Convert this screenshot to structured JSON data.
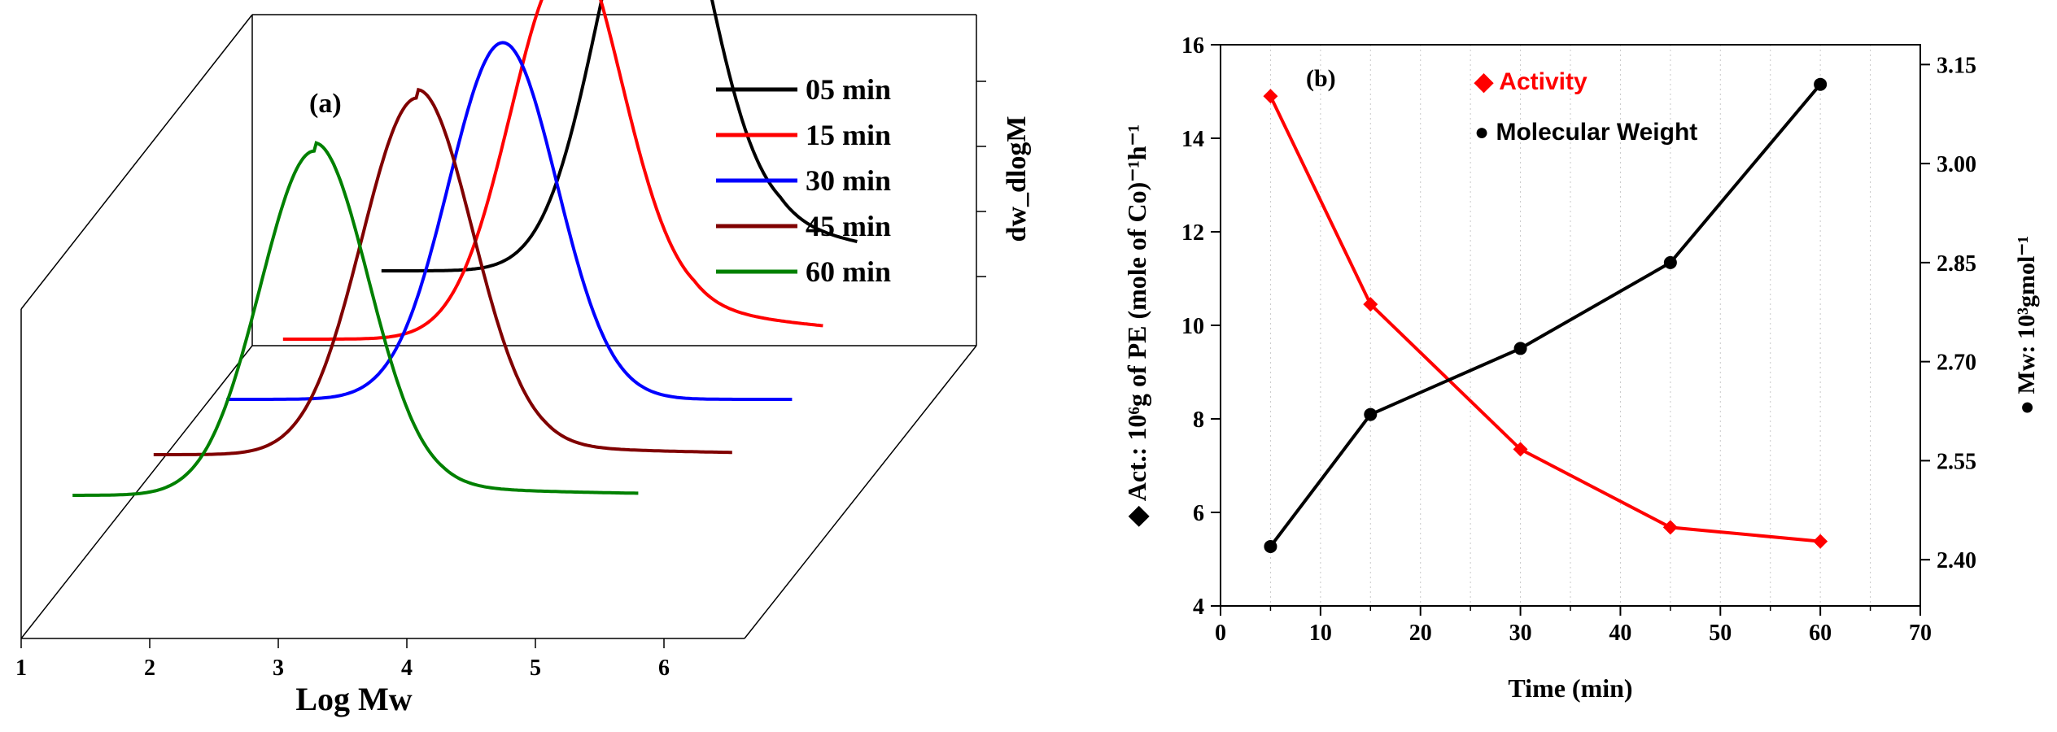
{
  "chart_data": [
    {
      "type": "line",
      "panel_label": "(a)",
      "style": "3d-waterfall",
      "xlabel": "Log Mw",
      "ylabel": "dw_dlogM",
      "x_ticks": [
        "1",
        "2",
        "3",
        "4",
        "5",
        "6"
      ],
      "xlim": [
        1,
        6.6
      ],
      "series": [
        {
          "name": "05 min",
          "color": "#000000",
          "x_range": [
            2.6,
            6.3
          ],
          "peak_x": 4.7,
          "peak_height": 1.0,
          "width": 0.42,
          "baseline": 0.0,
          "tail": 0.12
        },
        {
          "name": "15 min",
          "color": "#ff0000",
          "x_range": [
            2.1,
            6.3
          ],
          "peak_x": 4.3,
          "peak_height": 0.9,
          "width": 0.43,
          "baseline": 0.0,
          "tail": 0.08
        },
        {
          "name": "30 min",
          "color": "#0000ff",
          "x_range": [
            1.9,
            6.3
          ],
          "peak_x": 4.05,
          "peak_height": 0.86,
          "width": 0.42,
          "baseline": 0.0,
          "tail": 0.0
        },
        {
          "name": "45 min",
          "color": "#800000",
          "x_range": [
            1.6,
            6.1
          ],
          "peak_x": 3.65,
          "peak_height": 0.86,
          "width": 0.43,
          "baseline": 0.0,
          "tail": 0.02
        },
        {
          "name": "60 min",
          "color": "#008000",
          "x_range": [
            1.4,
            5.8
          ],
          "peak_x": 3.28,
          "peak_height": 0.83,
          "width": 0.42,
          "baseline": 0.0,
          "tail": 0.02
        }
      ],
      "legend": [
        "05 min",
        "15 min",
        "30 min",
        "45 min",
        "60 min"
      ]
    },
    {
      "type": "line",
      "panel_label": "(b)",
      "xlabel": "Time (min)",
      "ylabel_left": "◆ Act.: 10⁶g of PE (mole of Co)⁻¹h⁻¹",
      "ylabel_right": "● Mw: 10³gmol⁻¹",
      "x": [
        5,
        15,
        30,
        45,
        60
      ],
      "xlim": [
        0,
        70
      ],
      "x_ticks": [
        0,
        10,
        20,
        30,
        40,
        50,
        60,
        70
      ],
      "ylim_left": [
        4,
        16
      ],
      "y_ticks_left": [
        4,
        6,
        8,
        10,
        12,
        14,
        16
      ],
      "ylim_right": [
        2.33,
        3.18
      ],
      "y_ticks_right": [
        "2.40",
        "2.55",
        "2.70",
        "2.85",
        "3.00",
        "3.15"
      ],
      "series": [
        {
          "name": "Activity",
          "axis": "left",
          "marker": "diamond",
          "color": "#ff0000",
          "values": [
            14.9,
            10.45,
            7.35,
            5.68,
            5.38
          ]
        },
        {
          "name": "Molecular Weight",
          "axis": "right",
          "marker": "circle",
          "color": "#000000",
          "values": [
            2.42,
            2.62,
            2.72,
            2.85,
            3.12
          ]
        }
      ],
      "legend": [
        "◆ Activity",
        "● Molecular Weight"
      ]
    }
  ]
}
